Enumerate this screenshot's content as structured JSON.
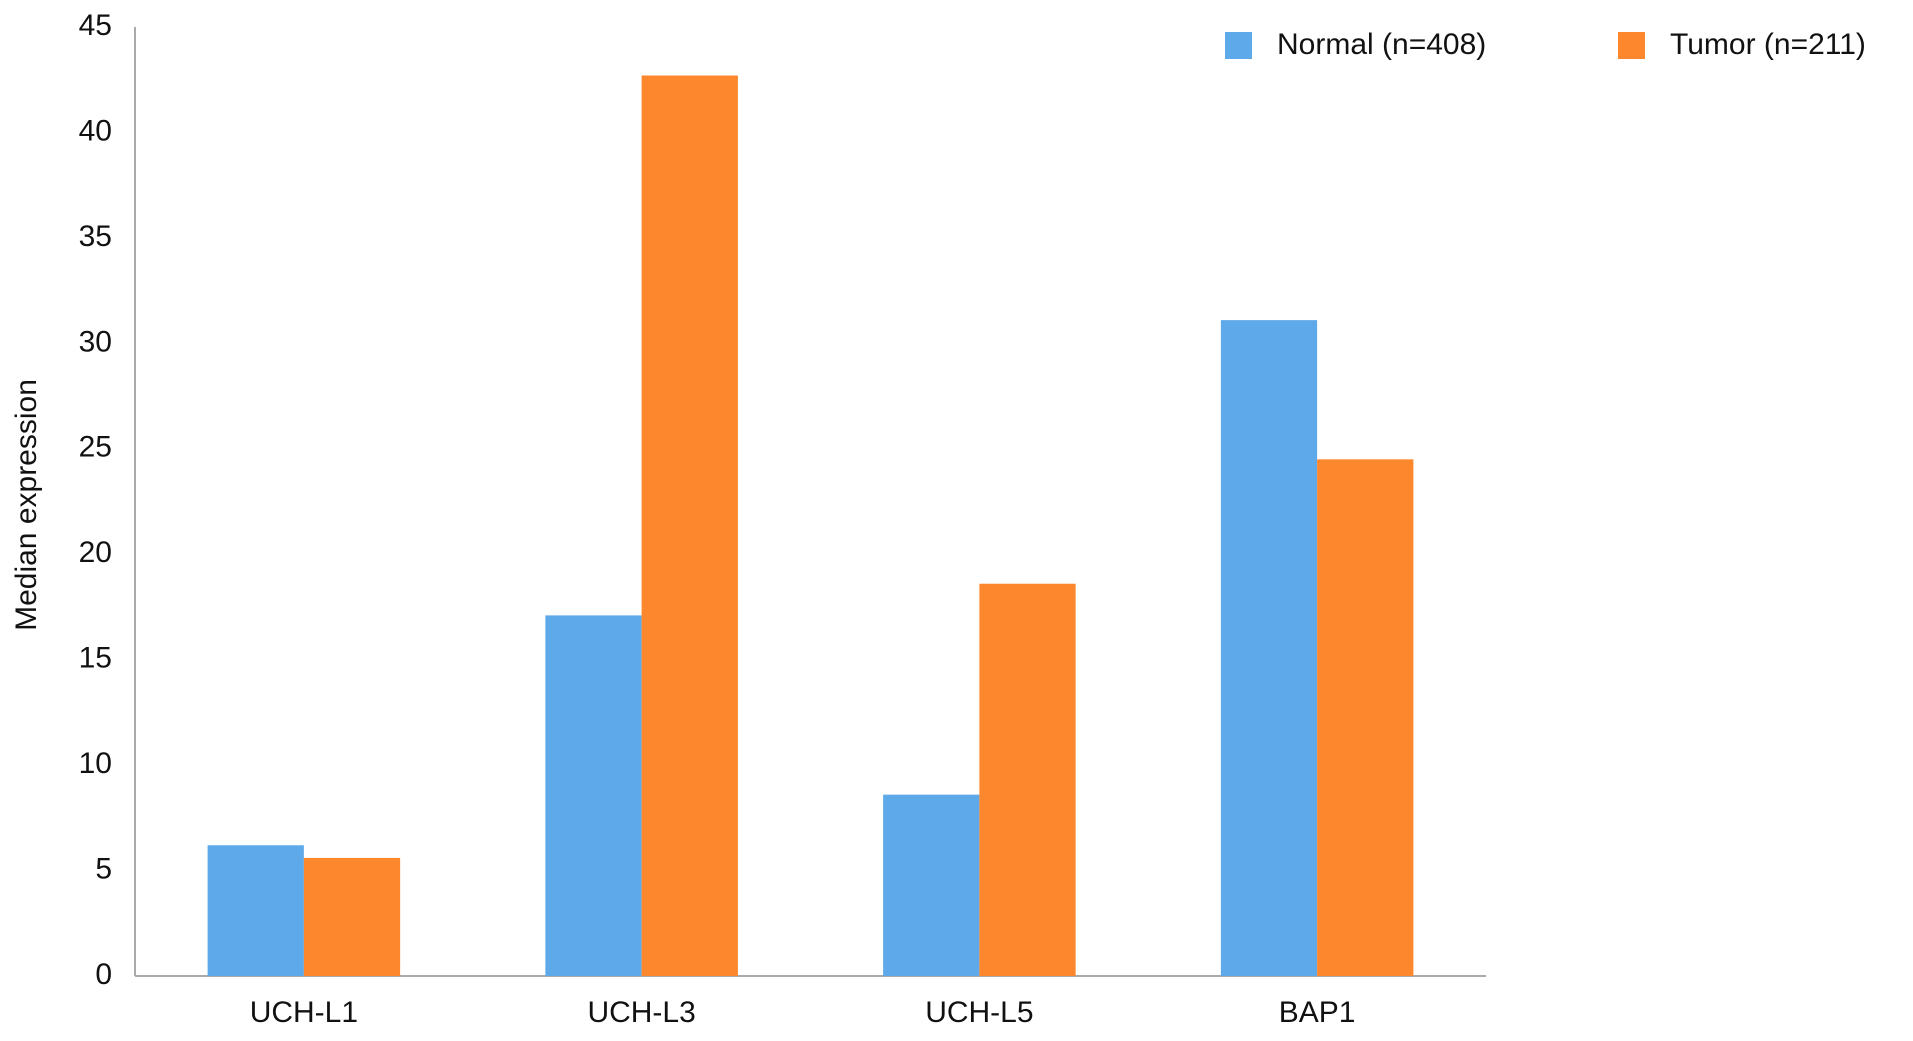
{
  "chart_data": {
    "type": "bar",
    "y_label": "Median expression",
    "categories": [
      "UCH-L1",
      "UCH-L3",
      "UCH-L5",
      "BAP1"
    ],
    "series": [
      {
        "name": "Normal (n=408)",
        "color": "#5ea9ea",
        "values": [
          6.2,
          17.1,
          8.6,
          31.1
        ]
      },
      {
        "name": "Tumor (n=211)",
        "color": "#fd872c",
        "values": [
          5.6,
          42.7,
          18.6,
          24.5
        ]
      }
    ],
    "ylim": [
      0,
      45
    ],
    "yticks": [
      0,
      5,
      10,
      15,
      20,
      25,
      30,
      35,
      40,
      45
    ],
    "grid": false,
    "legend": "top-right"
  }
}
